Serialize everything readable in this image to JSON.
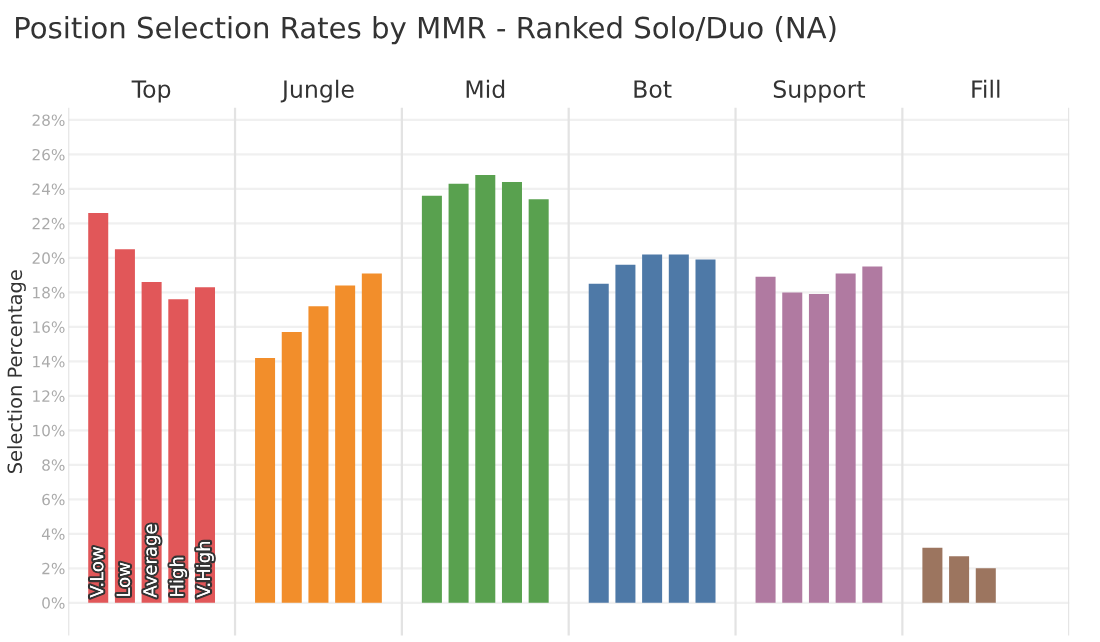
{
  "chart_data": {
    "type": "bar",
    "title": "Position Selection Rates by MMR - Ranked Solo/Duo (NA)",
    "ylabel": "Selection Percentage",
    "categories": [
      "Top",
      "Jungle",
      "Mid",
      "Bot",
      "Support",
      "Fill"
    ],
    "series": [
      {
        "name": "V.Low",
        "colors": [
          "#e15759",
          "#f28e2b",
          "#59a14f",
          "#4e79a7",
          "#b07aa1",
          "#9c755f"
        ],
        "values": [
          22.6,
          14.2,
          23.6,
          18.5,
          18.9,
          3.2
        ]
      },
      {
        "name": "Low",
        "colors": [
          "#e15759",
          "#f28e2b",
          "#59a14f",
          "#4e79a7",
          "#b07aa1",
          "#9c755f"
        ],
        "values": [
          20.5,
          15.7,
          24.3,
          19.6,
          18.0,
          2.7
        ]
      },
      {
        "name": "Average",
        "colors": [
          "#e15759",
          "#f28e2b",
          "#59a14f",
          "#4e79a7",
          "#b07aa1",
          "#9c755f"
        ],
        "values": [
          18.6,
          17.2,
          24.8,
          20.2,
          17.9,
          2.0
        ]
      },
      {
        "name": "High",
        "colors": [
          "#e15759",
          "#f28e2b",
          "#59a14f",
          "#4e79a7",
          "#b07aa1",
          "#9c755f"
        ],
        "values": [
          17.6,
          18.4,
          24.4,
          20.2,
          19.1,
          null
        ]
      },
      {
        "name": "V.High",
        "colors": [
          "#e15759",
          "#f28e2b",
          "#59a14f",
          "#4e79a7",
          "#b07aa1",
          "#9c755f"
        ],
        "values": [
          18.3,
          19.1,
          23.4,
          19.9,
          19.5,
          null
        ]
      }
    ],
    "ylim": [
      -1.9,
      28.7
    ],
    "yticks": [
      {
        "value": 0,
        "label": "0%"
      },
      {
        "value": 2,
        "label": "2%"
      },
      {
        "value": 4,
        "label": "4%"
      },
      {
        "value": 6,
        "label": "6%"
      },
      {
        "value": 8,
        "label": "8%"
      },
      {
        "value": 10,
        "label": "10%"
      },
      {
        "value": 12,
        "label": "12%"
      },
      {
        "value": 14,
        "label": "14%"
      },
      {
        "value": 16,
        "label": "16%"
      },
      {
        "value": 18,
        "label": "18%"
      },
      {
        "value": 20,
        "label": "20%"
      },
      {
        "value": 22,
        "label": "22%"
      },
      {
        "value": 24,
        "label": "24%"
      },
      {
        "value": 26,
        "label": "26%"
      },
      {
        "value": 28,
        "label": "28%"
      }
    ],
    "grid": "y",
    "legend": false
  }
}
